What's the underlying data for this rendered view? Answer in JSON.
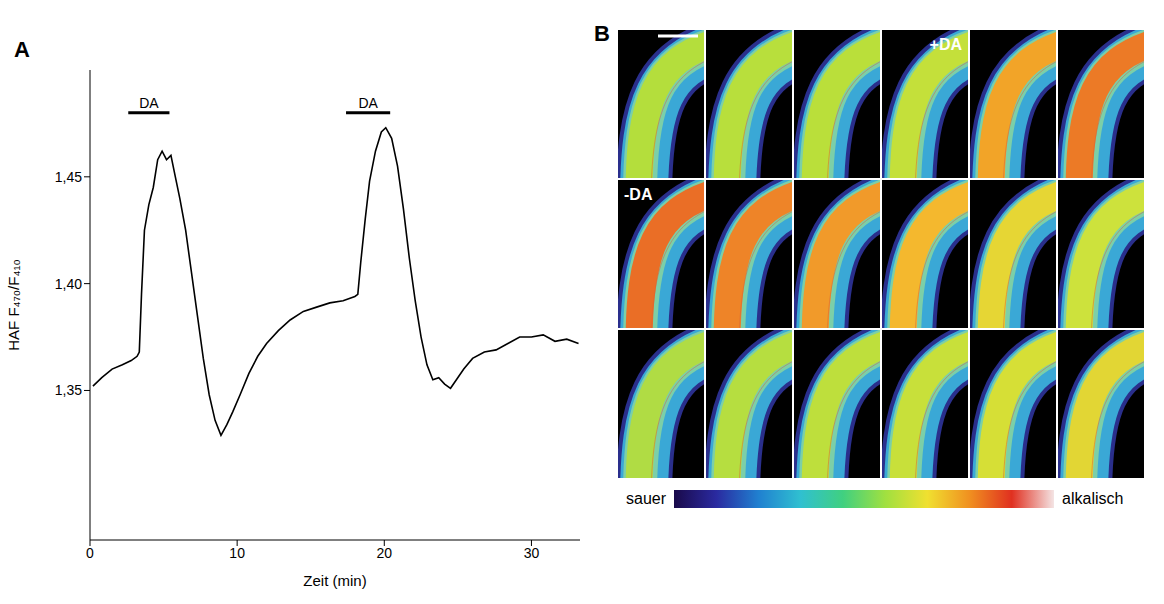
{
  "panel_labels": [
    "A",
    "B"
  ],
  "chart_data": {
    "type": "line",
    "xlabel": "Zeit (min)",
    "ylabel": "HAF F₄₇₀/F₄₁₀",
    "color": "#000000",
    "x": [
      0.2,
      0.8,
      1.5,
      2.2,
      2.8,
      3.2,
      3.35,
      3.5,
      3.7,
      4.0,
      4.3,
      4.6,
      4.9,
      5.2,
      5.5,
      5.8,
      6.1,
      6.5,
      6.9,
      7.3,
      7.7,
      8.1,
      8.5,
      8.9,
      9.3,
      9.7,
      10.2,
      10.8,
      11.4,
      12.0,
      12.8,
      13.6,
      14.5,
      15.4,
      16.3,
      17.2,
      18.0,
      18.2,
      18.4,
      18.7,
      19.0,
      19.4,
      19.8,
      20.1,
      20.5,
      20.9,
      21.3,
      21.7,
      22.1,
      22.5,
      22.9,
      23.3,
      23.7,
      24.1,
      24.5,
      24.9,
      25.4,
      26.0,
      26.8,
      27.6,
      28.4,
      29.2,
      30.0,
      30.8,
      31.6,
      32.4,
      33.2
    ],
    "values": [
      1.352,
      1.356,
      1.36,
      1.362,
      1.364,
      1.366,
      1.368,
      1.395,
      1.425,
      1.437,
      1.445,
      1.458,
      1.462,
      1.458,
      1.46,
      1.45,
      1.44,
      1.425,
      1.405,
      1.385,
      1.365,
      1.348,
      1.336,
      1.329,
      1.334,
      1.34,
      1.348,
      1.358,
      1.366,
      1.372,
      1.378,
      1.383,
      1.387,
      1.389,
      1.391,
      1.392,
      1.394,
      1.395,
      1.41,
      1.43,
      1.448,
      1.462,
      1.471,
      1.473,
      1.468,
      1.455,
      1.435,
      1.412,
      1.392,
      1.375,
      1.362,
      1.355,
      1.356,
      1.353,
      1.351,
      1.355,
      1.36,
      1.365,
      1.368,
      1.369,
      1.372,
      1.375,
      1.375,
      1.376,
      1.373,
      1.374,
      1.372
    ],
    "xlim": [
      0,
      33.3
    ],
    "ylim": [
      1.28,
      1.5
    ],
    "xticks": [
      0,
      10,
      20,
      30
    ],
    "yticks": [
      {
        "value": 1.35,
        "label": "1,35"
      },
      {
        "value": 1.4,
        "label": "1,40"
      },
      {
        "value": 1.45,
        "label": "1,45"
      }
    ],
    "annotations": [
      {
        "text": "DA",
        "x": [
          2.6,
          5.4
        ],
        "y": 1.48
      },
      {
        "text": "DA",
        "x": [
          17.4,
          20.4
        ],
        "y": 1.48
      }
    ]
  },
  "image_panel": {
    "frames": [
      {
        "color": "#b4de3c"
      },
      {
        "color": "#b8df3c"
      },
      {
        "color": "#badf3a"
      },
      {
        "color": "#c4e03a",
        "label": "+DA"
      },
      {
        "color": "#f2a428"
      },
      {
        "color": "#ec7a26"
      },
      {
        "color": "#ea6e26",
        "label": "-DA"
      },
      {
        "color": "#ee8428"
      },
      {
        "color": "#f19a2a"
      },
      {
        "color": "#f4b82e"
      },
      {
        "color": "#e6d634"
      },
      {
        "color": "#cde23c"
      },
      {
        "color": "#b0dc44"
      },
      {
        "color": "#b6de40"
      },
      {
        "color": "#bedf3c"
      },
      {
        "color": "#c8e03a"
      },
      {
        "color": "#d6df36"
      },
      {
        "color": "#e2d634"
      }
    ],
    "colorbar": {
      "labels": [
        "sauer",
        "alkalisch"
      ],
      "colors": [
        "#1a0a4a",
        "#2a2aa0",
        "#2080d0",
        "#30c0d0",
        "#40d080",
        "#a0e040",
        "#f0e030",
        "#f09020",
        "#e03020",
        "#f4e4e4"
      ]
    }
  }
}
